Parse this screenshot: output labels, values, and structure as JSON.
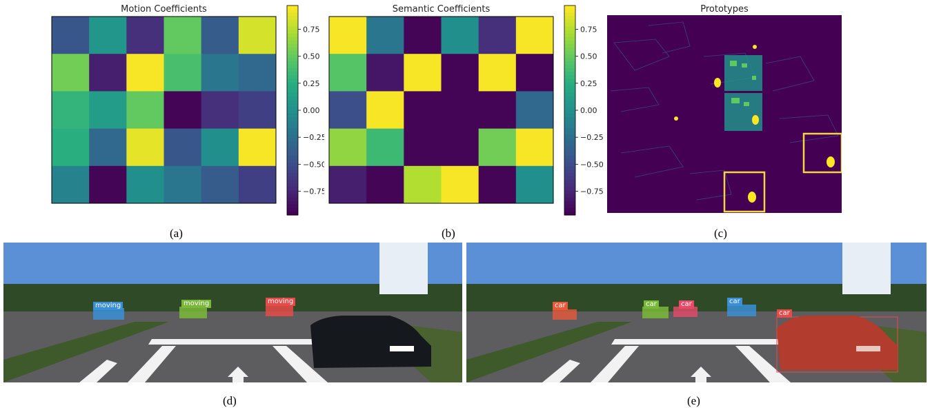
{
  "panels": {
    "a": {
      "title": "Motion Coefficients",
      "caption": "(a)",
      "chart_data": {
        "type": "heatmap",
        "title": "Motion Coefficients",
        "rows": 5,
        "cols": 6,
        "values": [
          [
            -0.45,
            0.05,
            -0.7,
            0.5,
            -0.4,
            0.85
          ],
          [
            0.55,
            -0.8,
            0.95,
            0.4,
            -0.2,
            -0.3
          ],
          [
            0.3,
            0.1,
            0.5,
            -0.95,
            -0.7,
            -0.6
          ],
          [
            0.25,
            -0.3,
            0.9,
            -0.45,
            0.0,
            0.95
          ],
          [
            -0.1,
            -0.95,
            0.0,
            -0.2,
            -0.4,
            -0.6
          ]
        ],
        "colorbar_ticks": [
          "0.75",
          "0.50",
          "0.25",
          "0.00",
          "−0.25",
          "−0.50",
          "−0.75"
        ],
        "colorbar_values": [
          0.75,
          0.5,
          0.25,
          0.0,
          -0.25,
          -0.5,
          -0.75
        ],
        "vmin": -0.97,
        "vmax": 0.97
      }
    },
    "b": {
      "title": "Semantic Coefficients",
      "caption": "(b)",
      "chart_data": {
        "type": "heatmap",
        "title": "Semantic Coefficients",
        "rows": 5,
        "cols": 6,
        "values": [
          [
            0.95,
            -0.2,
            -0.95,
            0.0,
            -0.7,
            0.95
          ],
          [
            0.45,
            -0.85,
            0.95,
            -0.95,
            0.95,
            -0.95
          ],
          [
            -0.5,
            0.95,
            -0.95,
            -0.95,
            -0.95,
            -0.3
          ],
          [
            0.65,
            0.35,
            -0.95,
            -0.95,
            0.55,
            0.95
          ],
          [
            -0.8,
            -0.95,
            0.75,
            0.95,
            -0.95,
            0.0
          ]
        ],
        "colorbar_ticks": [
          "0.75",
          "0.50",
          "0.25",
          "0.00",
          "−0.25",
          "−0.50",
          "−0.75"
        ],
        "colorbar_values": [
          0.75,
          0.5,
          0.25,
          0.0,
          -0.25,
          -0.5,
          -0.75
        ],
        "vmin": -0.97,
        "vmax": 0.97
      }
    },
    "c": {
      "title": "Prototypes",
      "caption": "(c)"
    },
    "d": {
      "caption": "(d)",
      "labels": [
        {
          "text": "moving",
          "color": "#3a8fd6"
        },
        {
          "text": "moving",
          "color": "#7ab83a"
        },
        {
          "text": "moving",
          "color": "#e84a4a"
        }
      ]
    },
    "e": {
      "caption": "(e)",
      "labels": [
        {
          "text": "car",
          "color": "#e8593a"
        },
        {
          "text": "car",
          "color": "#7ab83a"
        },
        {
          "text": "car",
          "color": "#e84a6a"
        },
        {
          "text": "car",
          "color": "#3a8fd6"
        },
        {
          "text": "car",
          "color": "#e84a4a"
        }
      ]
    }
  },
  "colors": {
    "highlight": "#f2d640",
    "dark_bg": "#440154"
  }
}
